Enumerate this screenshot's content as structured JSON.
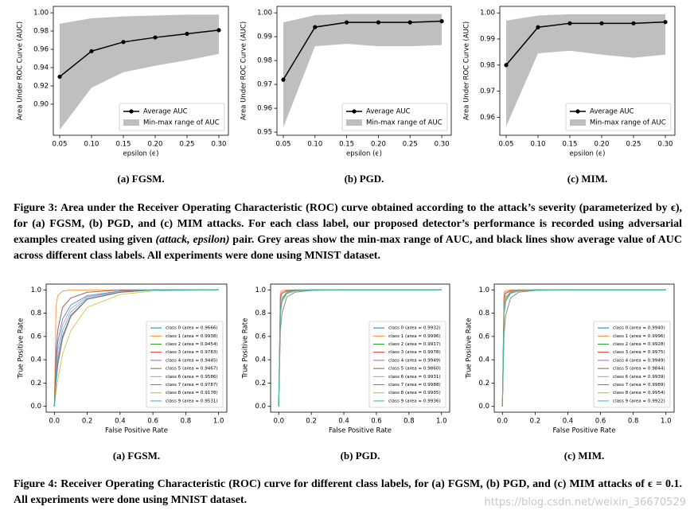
{
  "chart_data": [
    {
      "type": "line",
      "caption": "(a) FGSM.",
      "x": [
        0.05,
        0.1,
        0.15,
        0.2,
        0.25,
        0.3
      ],
      "xlim": [
        0.04,
        0.315
      ],
      "xticks": [
        0.05,
        {
          "value": 0.1,
          "label": "0.10"
        },
        0.15,
        {
          "value": 0.2,
          "label": "0.20"
        },
        0.25,
        {
          "value": 0.3,
          "label": "0.30"
        }
      ],
      "ylim": [
        0.866,
        1.007
      ],
      "yticks": [
        {
          "value": 0.9,
          "label": "0.90"
        },
        0.92,
        0.94,
        0.96,
        0.98,
        {
          "value": 1,
          "label": "1.00"
        }
      ],
      "xlabel": "epsilon (ϵ)",
      "ylabel": "Area Under ROC Curve (AUC)",
      "legend": "lower right",
      "series": [
        {
          "name": "Average AUC",
          "color": "#000000",
          "marker": true,
          "values": [
            0.93,
            0.958,
            0.968,
            0.973,
            0.977,
            0.981
          ]
        }
      ],
      "band": {
        "name": "Min-max range of AUC",
        "color": "#bfbfbf",
        "lower": [
          0.872,
          0.918,
          0.935,
          0.942,
          0.948,
          0.955
        ],
        "upper": [
          0.988,
          0.994,
          0.996,
          0.997,
          0.998,
          0.998
        ]
      }
    },
    {
      "type": "line",
      "caption": "(b) PGD.",
      "x": [
        0.05,
        0.1,
        0.15,
        0.2,
        0.25,
        0.3
      ],
      "xlim": [
        0.04,
        0.315
      ],
      "xticks": [
        0.05,
        {
          "value": 0.1,
          "label": "0.10"
        },
        0.15,
        {
          "value": 0.2,
          "label": "0.20"
        },
        0.25,
        {
          "value": 0.3,
          "label": "0.30"
        }
      ],
      "ylim": [
        0.9487,
        1.0027
      ],
      "yticks": [
        0.95,
        0.96,
        0.97,
        0.98,
        0.99,
        {
          "value": 1,
          "label": "1.00"
        }
      ],
      "xlabel": "epsilon (ϵ)",
      "ylabel": "Area Under ROC Curve (AUC)",
      "legend": "lower right",
      "series": [
        {
          "name": "Average AUC",
          "color": "#000000",
          "marker": true,
          "values": [
            0.972,
            0.994,
            0.996,
            0.996,
            0.996,
            0.9965
          ]
        }
      ],
      "band": {
        "name": "Min-max range of AUC",
        "color": "#bfbfbf",
        "lower": [
          0.952,
          0.986,
          0.987,
          0.986,
          0.986,
          0.9865
        ],
        "upper": [
          0.996,
          0.999,
          0.9995,
          0.9995,
          0.9995,
          0.9995
        ]
      }
    },
    {
      "type": "line",
      "caption": "(c) MIM.",
      "x": [
        0.05,
        0.1,
        0.15,
        0.2,
        0.25,
        0.3
      ],
      "xlim": [
        0.04,
        0.315
      ],
      "xticks": [
        0.05,
        {
          "value": 0.1,
          "label": "0.10"
        },
        0.15,
        {
          "value": 0.2,
          "label": "0.20"
        },
        0.25,
        {
          "value": 0.3,
          "label": "0.30"
        }
      ],
      "ylim": [
        0.9531,
        1.0025
      ],
      "yticks": [
        0.96,
        0.97,
        0.98,
        0.99,
        {
          "value": 1,
          "label": "1.00"
        }
      ],
      "xlabel": "epsilon (ϵ)",
      "ylabel": "Area Under ROC Curve (AUC)",
      "legend": "lower right",
      "series": [
        {
          "name": "Average AUC",
          "color": "#000000",
          "marker": true,
          "values": [
            0.98,
            0.9945,
            0.996,
            0.996,
            0.996,
            0.9965
          ]
        }
      ],
      "band": {
        "name": "Min-max range of AUC",
        "color": "#bfbfbf",
        "lower": [
          0.9565,
          0.9845,
          0.9855,
          0.984,
          0.9828,
          0.984
        ],
        "upper": [
          0.997,
          0.999,
          0.9995,
          0.9995,
          0.9995,
          0.9995
        ]
      }
    },
    {
      "type": "line",
      "caption": "(a) FGSM.",
      "x": [
        0,
        0.01,
        0.02,
        0.05,
        0.1,
        0.2,
        0.4,
        0.6,
        1
      ],
      "xlim": [
        -0.05,
        1.05
      ],
      "xticks": [
        {
          "value": 0,
          "label": "0.0"
        },
        0.2,
        0.4,
        0.6,
        0.8,
        {
          "value": 1,
          "label": "1.0"
        }
      ],
      "ylim": [
        -0.05,
        1.05
      ],
      "yticks": [
        {
          "value": 0,
          "label": "0.0"
        },
        0.2,
        0.4,
        0.6,
        0.8,
        {
          "value": 1,
          "label": "1.0"
        }
      ],
      "xlabel": "False Positive Rate",
      "ylabel": "True Positive Rate",
      "legend": "lower right",
      "series": [
        {
          "name": "class 0 (area = 0.9666)",
          "color": "#1f77b4",
          "values": [
            0,
            0.35,
            0.55,
            0.75,
            0.87,
            0.95,
            0.99,
            1,
            1
          ]
        },
        {
          "name": "class 1 (area = 0.9938)",
          "color": "#ff7f0e",
          "values": [
            0,
            0.85,
            0.95,
            0.99,
            1,
            1,
            1,
            1,
            1
          ]
        },
        {
          "name": "class 2 (area = 0.9454)",
          "color": "#2ca02c",
          "values": [
            0,
            0.2,
            0.35,
            0.6,
            0.78,
            0.92,
            0.98,
            1,
            1
          ]
        },
        {
          "name": "class 3 (area = 0.9783)",
          "color": "#d62728",
          "values": [
            0,
            0.45,
            0.65,
            0.85,
            0.93,
            0.98,
            1,
            1,
            1
          ]
        },
        {
          "name": "class 4 (area = 0.9445)",
          "color": "#9467bd",
          "values": [
            0,
            0.2,
            0.35,
            0.58,
            0.77,
            0.92,
            0.98,
            1,
            1
          ]
        },
        {
          "name": "class 5 (area = 0.9467)",
          "color": "#8c564b",
          "values": [
            0,
            0.22,
            0.38,
            0.6,
            0.78,
            0.92,
            0.98,
            1,
            1
          ]
        },
        {
          "name": "class 6 (area = 0.9586)",
          "color": "#e377c2",
          "values": [
            0,
            0.3,
            0.48,
            0.7,
            0.84,
            0.94,
            0.99,
            1,
            1
          ]
        },
        {
          "name": "class 7 (area = 0.9787)",
          "color": "#7f7f7f",
          "values": [
            0,
            0.45,
            0.65,
            0.85,
            0.93,
            0.98,
            1,
            1,
            1
          ]
        },
        {
          "name": "class 8 (area = 0.9178)",
          "color": "#bcbd22",
          "values": [
            0,
            0.12,
            0.22,
            0.45,
            0.65,
            0.85,
            0.96,
            0.99,
            1
          ]
        },
        {
          "name": "class 9 (area = 0.9531)",
          "color": "#17becf",
          "values": [
            0,
            0.25,
            0.42,
            0.65,
            0.81,
            0.93,
            0.99,
            1,
            1
          ]
        }
      ]
    },
    {
      "type": "line",
      "caption": "(b) PGD.",
      "x": [
        0,
        0.01,
        0.02,
        0.05,
        0.1,
        0.2,
        0.4,
        0.6,
        1
      ],
      "xlim": [
        -0.05,
        1.05
      ],
      "xticks": [
        {
          "value": 0,
          "label": "0.0"
        },
        0.2,
        0.4,
        0.6,
        0.8,
        {
          "value": 1,
          "label": "1.0"
        }
      ],
      "ylim": [
        -0.05,
        1.05
      ],
      "yticks": [
        {
          "value": 0,
          "label": "0.0"
        },
        0.2,
        0.4,
        0.6,
        0.8,
        {
          "value": 1,
          "label": "1.0"
        }
      ],
      "xlabel": "False Positive Rate",
      "ylabel": "True Positive Rate",
      "legend": "lower right",
      "series": [
        {
          "name": "class 0 (area = 0.9932)",
          "color": "#1f77b4",
          "values": [
            0,
            0.8,
            0.92,
            0.98,
            0.995,
            1,
            1,
            1,
            1
          ]
        },
        {
          "name": "class 1 (area = 0.9996)",
          "color": "#ff7f0e",
          "values": [
            0,
            0.98,
            0.995,
            1,
            1,
            1,
            1,
            1,
            1
          ]
        },
        {
          "name": "class 2 (area = 0.9917)",
          "color": "#2ca02c",
          "values": [
            0,
            0.78,
            0.9,
            0.97,
            0.99,
            1,
            1,
            1,
            1
          ]
        },
        {
          "name": "class 3 (area = 0.9978)",
          "color": "#d62728",
          "values": [
            0,
            0.92,
            0.97,
            0.99,
            1,
            1,
            1,
            1,
            1
          ]
        },
        {
          "name": "class 4 (area = 0.9949)",
          "color": "#9467bd",
          "values": [
            0,
            0.85,
            0.93,
            0.98,
            0.995,
            1,
            1,
            1,
            1
          ]
        },
        {
          "name": "class 5 (area = 0.9860)",
          "color": "#8c564b",
          "values": [
            0,
            0.65,
            0.8,
            0.94,
            0.98,
            0.995,
            1,
            1,
            1
          ]
        },
        {
          "name": "class 6 (area = 0.9931)",
          "color": "#e377c2",
          "values": [
            0,
            0.8,
            0.92,
            0.98,
            0.995,
            1,
            1,
            1,
            1
          ]
        },
        {
          "name": "class 7 (area = 0.9988)",
          "color": "#7f7f7f",
          "values": [
            0,
            0.95,
            0.98,
            0.995,
            1,
            1,
            1,
            1,
            1
          ]
        },
        {
          "name": "class 8 (area = 0.9935)",
          "color": "#bcbd22",
          "values": [
            0,
            0.8,
            0.92,
            0.98,
            0.995,
            1,
            1,
            1,
            1
          ]
        },
        {
          "name": "class 9 (area = 0.9936)",
          "color": "#17becf",
          "values": [
            0,
            0.82,
            0.92,
            0.98,
            0.995,
            1,
            1,
            1,
            1
          ]
        }
      ]
    },
    {
      "type": "line",
      "caption": "(c) MIM.",
      "x": [
        0,
        0.01,
        0.02,
        0.05,
        0.1,
        0.2,
        0.4,
        0.6,
        1
      ],
      "xlim": [
        -0.05,
        1.05
      ],
      "xticks": [
        {
          "value": 0,
          "label": "0.0"
        },
        0.2,
        0.4,
        0.6,
        0.8,
        {
          "value": 1,
          "label": "1.0"
        }
      ],
      "ylim": [
        -0.05,
        1.05
      ],
      "yticks": [
        {
          "value": 0,
          "label": "0.0"
        },
        0.2,
        0.4,
        0.6,
        0.8,
        {
          "value": 1,
          "label": "1.0"
        }
      ],
      "xlabel": "False Positive Rate",
      "ylabel": "True Positive Rate",
      "legend": "lower right",
      "series": [
        {
          "name": "class 0 (area = 0.9940)",
          "color": "#1f77b4",
          "values": [
            0,
            0.82,
            0.93,
            0.98,
            0.995,
            1,
            1,
            1,
            1
          ]
        },
        {
          "name": "class 1 (area = 0.9996)",
          "color": "#ff7f0e",
          "values": [
            0,
            0.98,
            0.995,
            1,
            1,
            1,
            1,
            1,
            1
          ]
        },
        {
          "name": "class 2 (area = 0.9928)",
          "color": "#2ca02c",
          "values": [
            0,
            0.8,
            0.91,
            0.975,
            0.99,
            1,
            1,
            1,
            1
          ]
        },
        {
          "name": "class 3 (area = 0.9975)",
          "color": "#d62728",
          "values": [
            0,
            0.92,
            0.97,
            0.99,
            1,
            1,
            1,
            1,
            1
          ]
        },
        {
          "name": "class 4 (area = 0.9949)",
          "color": "#9467bd",
          "values": [
            0,
            0.85,
            0.93,
            0.98,
            0.995,
            1,
            1,
            1,
            1
          ]
        },
        {
          "name": "class 5 (area = 0.9844)",
          "color": "#8c564b",
          "values": [
            0,
            0.62,
            0.78,
            0.93,
            0.98,
            0.995,
            1,
            1,
            1
          ]
        },
        {
          "name": "class 6 (area = 0.9939)",
          "color": "#e377c2",
          "values": [
            0,
            0.82,
            0.93,
            0.98,
            0.995,
            1,
            1,
            1,
            1
          ]
        },
        {
          "name": "class 7 (area = 0.9989)",
          "color": "#7f7f7f",
          "values": [
            0,
            0.95,
            0.98,
            0.995,
            1,
            1,
            1,
            1,
            1
          ]
        },
        {
          "name": "class 8 (area = 0.9954)",
          "color": "#bcbd22",
          "values": [
            0,
            0.86,
            0.94,
            0.985,
            0.995,
            1,
            1,
            1,
            1
          ]
        },
        {
          "name": "class 9 (area = 0.9922)",
          "color": "#17becf",
          "values": [
            0,
            0.78,
            0.9,
            0.97,
            0.99,
            1,
            1,
            1,
            1
          ]
        }
      ]
    }
  ],
  "captions": {
    "figure3": [
      "Figure 3: Area under the Receiver Operating Characteristic (ROC) curve obtained according to the attack’s severity (parameterized by ϵ), for (a) FGSM, (b) PGD, and (c) MIM attacks. For each class label, our proposed detector’s performance is recorded using adversarial examples created using given ",
      "(attack, epsilon)",
      " pair. Grey areas show the min-max range of AUC, and black lines show average value of AUC across different class labels. All experiments were done using MNIST dataset."
    ],
    "figure4": "Figure 4: Receiver Operating Characteristic (ROC) curve for different class labels, for (a) FGSM, (b) PGD, and (c) MIM attacks of ϵ = 0.1. All experiments were done using MNIST dataset."
  },
  "watermark": "https://blog.csdn.net/weixin_36670529"
}
